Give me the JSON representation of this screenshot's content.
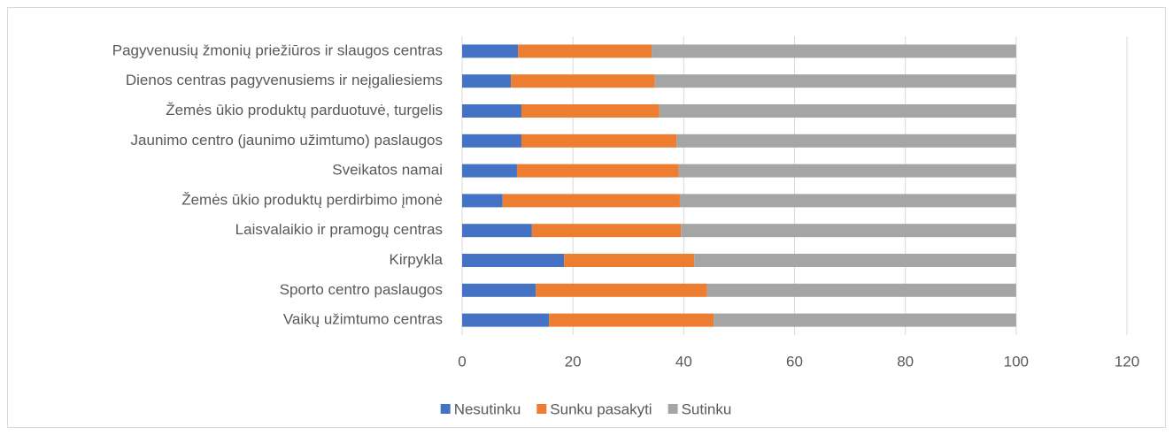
{
  "chart_data": {
    "type": "stacked_barh",
    "categories": [
      "Pagyvenusių žmonių priežiūros ir slaugos centras",
      "Dienos centras pagyvenusiems ir neįgaliesiems",
      "Žemės ūkio produktų parduotuvė, turgelis",
      "Jaunimo centro (jaunimo užimtumo) paslaugos",
      "Sveikatos namai",
      "Žemės ūkio produktų perdirbimo įmonė",
      "Laisvalaikio ir pramogų centras",
      "Kirpykla",
      "Sporto centro paslaugos",
      "Vaikų užimtumo centras"
    ],
    "series": [
      {
        "name": "Nesutinku",
        "color": "#4472c4",
        "values": [
          10.1,
          8.8,
          10.7,
          10.7,
          9.9,
          7.3,
          12.6,
          18.4,
          13.3,
          15.7
        ]
      },
      {
        "name": "Sunku pasakyti",
        "color": "#ed7d31",
        "values": [
          24.1,
          26.0,
          24.9,
          28.0,
          29.2,
          32.0,
          26.9,
          23.5,
          30.9,
          29.7
        ]
      },
      {
        "name": "Sutinku",
        "color": "#a5a5a5",
        "values": [
          65.8,
          65.2,
          64.4,
          61.3,
          60.9,
          60.7,
          60.5,
          58.1,
          55.8,
          54.6
        ]
      }
    ],
    "xlim": [
      0,
      120
    ],
    "xticks": [
      0,
      20,
      40,
      60,
      80,
      100,
      120
    ],
    "grid": true,
    "legend": "bottom"
  }
}
